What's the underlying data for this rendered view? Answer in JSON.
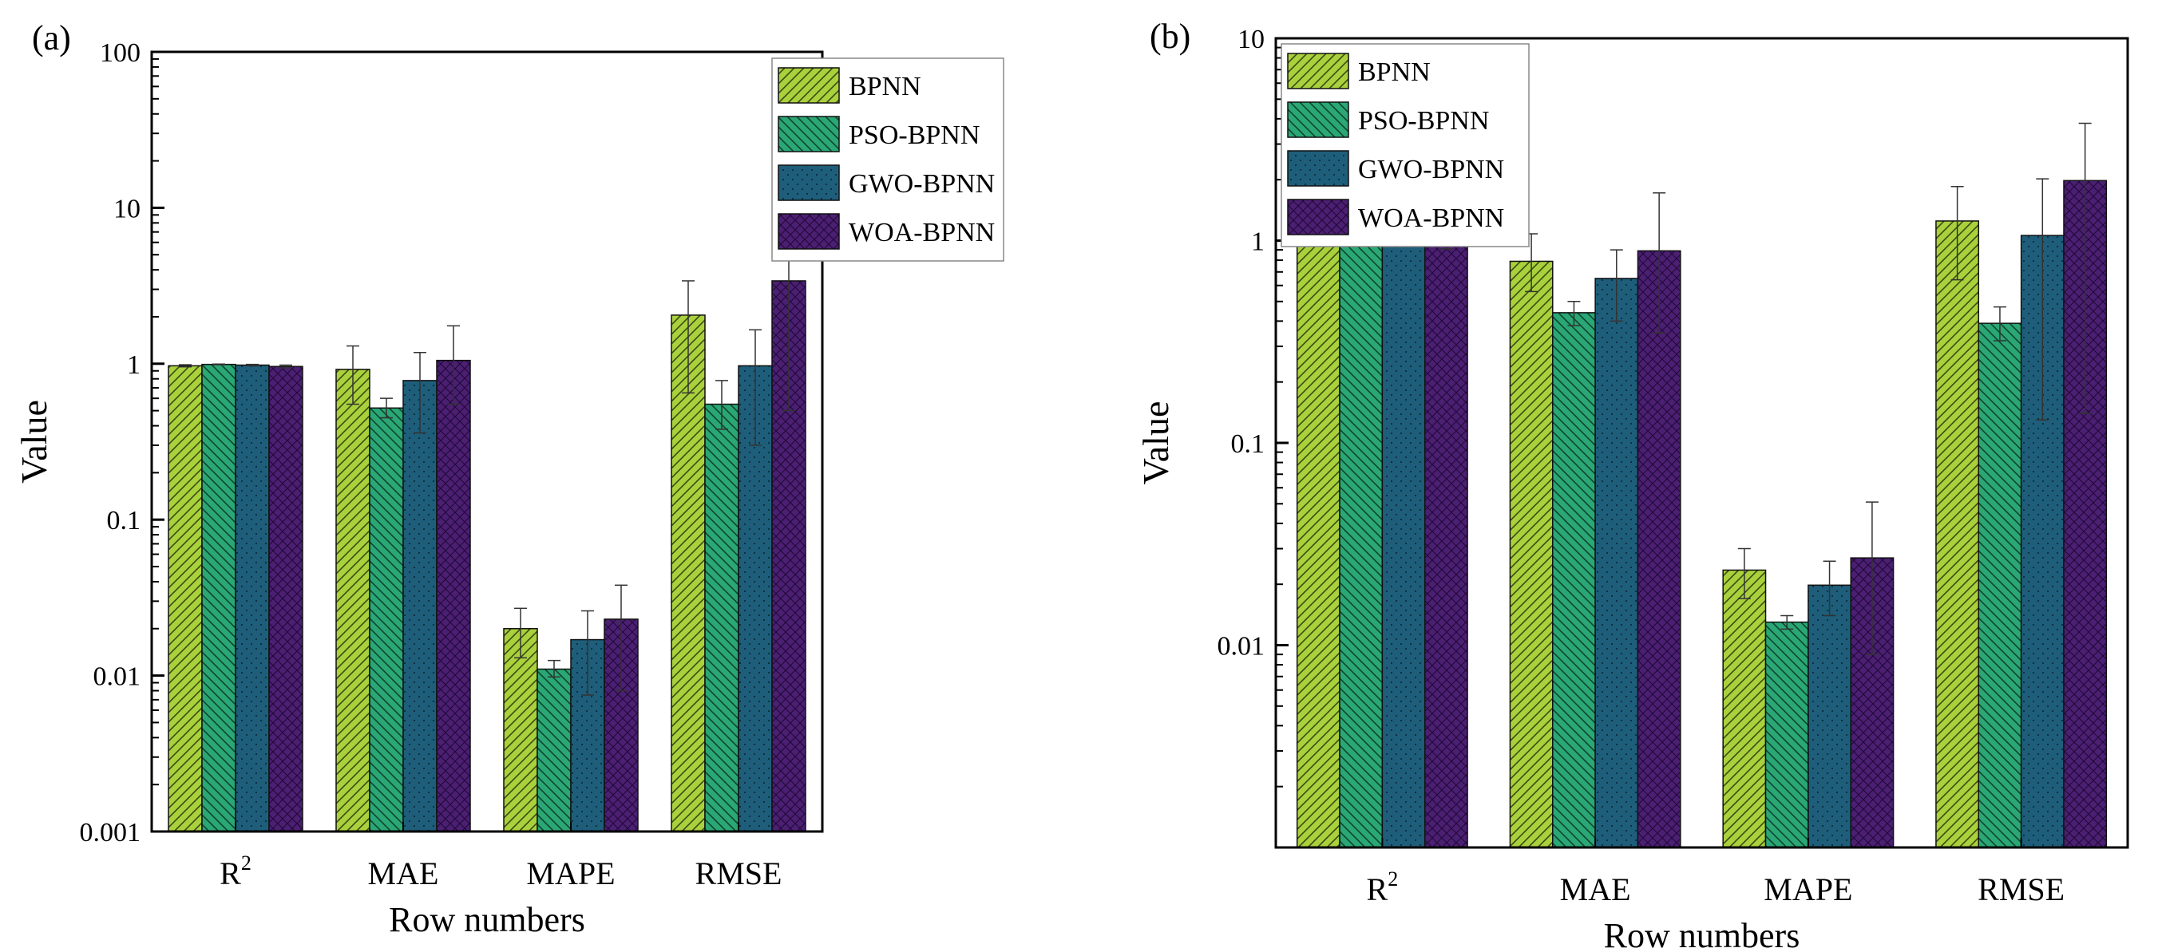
{
  "chart_data": [
    {
      "type": "bar",
      "panel_label": "(a)",
      "ylabel": "Value",
      "xlabel": "Row numbers",
      "yscale": "log",
      "ylim": [
        0.001,
        100
      ],
      "y_ticks": [
        "0.001",
        "0.01",
        "0.1",
        "1",
        "10",
        "100"
      ],
      "categories": [
        "R",
        "MAE",
        "MAPE",
        "RMSE"
      ],
      "category_superscripts": [
        "2",
        "",
        "",
        ""
      ],
      "legend_position": "top-right",
      "series": [
        {
          "name": "BPNN",
          "values": [
            0.97,
            0.92,
            0.02,
            2.05
          ],
          "errors_upper": [
            0.985,
            1.3,
            0.027,
            3.4
          ],
          "errors_lower": [
            0.955,
            0.55,
            0.013,
            0.65
          ]
        },
        {
          "name": "PSO-BPNN",
          "values": [
            0.99,
            0.52,
            0.011,
            0.55
          ],
          "errors_upper": [
            0.995,
            0.6,
            0.0125,
            0.78
          ],
          "errors_lower": [
            0.985,
            0.45,
            0.0098,
            0.38
          ]
        },
        {
          "name": "GWO-BPNN",
          "values": [
            0.98,
            0.78,
            0.017,
            0.97
          ],
          "errors_upper": [
            0.99,
            1.18,
            0.026,
            1.65
          ],
          "errors_lower": [
            0.97,
            0.36,
            0.0075,
            0.3
          ]
        },
        {
          "name": "WOA-BPNN",
          "values": [
            0.96,
            1.05,
            0.023,
            3.4
          ],
          "errors_upper": [
            0.98,
            1.75,
            0.038,
            6.5
          ],
          "errors_lower": [
            0.94,
            0.55,
            0.008,
            0.5
          ]
        }
      ]
    },
    {
      "type": "bar",
      "panel_label": "(b)",
      "ylabel": "Value",
      "xlabel": "Row numbers",
      "yscale": "log",
      "ylim": [
        0.001,
        10
      ],
      "y_ticks": [
        "0.01",
        "0.1",
        "1",
        "10"
      ],
      "categories": [
        "R",
        "MAE",
        "MAPE",
        "RMSE"
      ],
      "category_superscripts": [
        "2",
        "",
        "",
        ""
      ],
      "legend_position": "top-left",
      "series": [
        {
          "name": "BPNN",
          "values": [
            0.97,
            0.79,
            0.0235,
            1.25
          ],
          "errors_upper": [
            0.985,
            1.08,
            0.03,
            1.85
          ],
          "errors_lower": [
            0.955,
            0.56,
            0.017,
            0.64
          ]
        },
        {
          "name": "PSO-BPNN",
          "values": [
            0.985,
            0.44,
            0.013,
            0.39
          ],
          "errors_upper": [
            0.99,
            0.5,
            0.014,
            0.47
          ],
          "errors_lower": [
            0.98,
            0.38,
            0.012,
            0.32
          ]
        },
        {
          "name": "GWO-BPNN",
          "values": [
            0.975,
            0.65,
            0.0198,
            1.06
          ],
          "errors_upper": [
            0.985,
            0.9,
            0.026,
            2.02
          ],
          "errors_lower": [
            0.965,
            0.4,
            0.014,
            0.13
          ]
        },
        {
          "name": "WOA-BPNN",
          "values": [
            0.95,
            0.89,
            0.027,
            1.98
          ],
          "errors_upper": [
            0.99,
            1.72,
            0.051,
            3.8
          ],
          "errors_lower": [
            0.91,
            0.35,
            0.009,
            0.14
          ]
        }
      ]
    }
  ],
  "series_styles": [
    {
      "fill": "#a9d13c",
      "hatch": "ltr",
      "hatch_color": "#3d4a14"
    },
    {
      "fill": "#2aa774",
      "hatch": "rtl",
      "hatch_color": "#0e4530"
    },
    {
      "fill": "#1f5e7a",
      "hatch": "dots",
      "hatch_color": "#0a2c3c"
    },
    {
      "fill": "#4b1f72",
      "hatch": "cross",
      "hatch_color": "#1f0838"
    }
  ]
}
